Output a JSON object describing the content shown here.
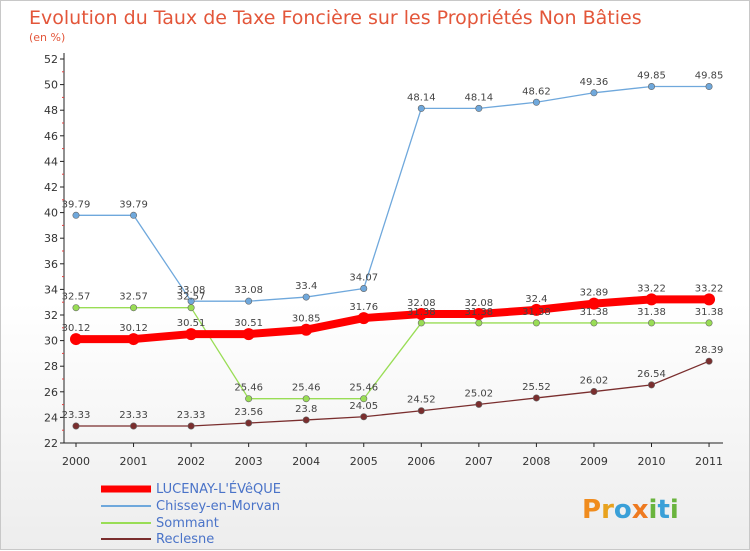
{
  "chart_data": {
    "type": "line",
    "title": "Evolution du Taux de Taxe Foncière sur les Propriétés Non Bâties",
    "subtitle": "(en %)",
    "x": [
      "2000",
      "2001",
      "2002",
      "2003",
      "2004",
      "2005",
      "2006",
      "2007",
      "2008",
      "2009",
      "2010",
      "2011"
    ],
    "yticks": [
      "22",
      "24",
      "26",
      "28",
      "30",
      "32",
      "34",
      "36",
      "38",
      "40",
      "42",
      "44",
      "46",
      "48",
      "50",
      "52"
    ],
    "ylim": [
      22,
      52
    ],
    "grid": false,
    "legend_position": "bottom-left",
    "series": [
      {
        "name": "LUCENAY-L'ÉVêQUE",
        "color": "#ff0000",
        "values": [
          30.12,
          30.12,
          30.51,
          30.51,
          30.85,
          31.76,
          32.08,
          32.08,
          32.4,
          32.89,
          33.22,
          33.22
        ],
        "labels": [
          "30.12",
          "30.12",
          "30.51",
          "30.51",
          "30.85",
          "31.76",
          "32.08",
          "32.08",
          "32.4",
          "32.89",
          "33.22",
          "33.22"
        ]
      },
      {
        "name": "Chissey-en-Morvan",
        "color": "#6fa8dc",
        "values": [
          39.79,
          39.79,
          33.08,
          33.08,
          33.4,
          34.07,
          48.14,
          48.14,
          48.62,
          49.36,
          49.85,
          49.85
        ],
        "labels": [
          "39.79",
          "39.79",
          "33.08",
          "33.08",
          "33.4",
          "34.07",
          "48.14",
          "48.14",
          "48.62",
          "49.36",
          "49.85",
          "49.85"
        ]
      },
      {
        "name": "Sommant",
        "color": "#99dd55",
        "values": [
          32.57,
          32.57,
          32.57,
          25.46,
          25.46,
          25.46,
          31.38,
          31.38,
          31.38,
          31.38,
          31.38,
          31.38
        ],
        "labels": [
          "32.57",
          "32.57",
          "32.57",
          "25.46",
          "25.46",
          "25.46",
          "31.38",
          "31.38",
          "31.38",
          "31.38",
          "31.38",
          "31.38"
        ]
      },
      {
        "name": "Reclesne",
        "color": "#7a2e2e",
        "values": [
          23.33,
          23.33,
          23.33,
          23.56,
          23.8,
          24.05,
          24.52,
          25.02,
          25.52,
          26.02,
          26.54,
          28.39
        ],
        "labels": [
          "23.33",
          "23.33",
          "23.33",
          "23.56",
          "23.8",
          "24.05",
          "24.52",
          "25.02",
          "25.52",
          "26.02",
          "26.54",
          "28.39"
        ]
      }
    ]
  },
  "brand": {
    "logo_text": "Proxiti"
  }
}
